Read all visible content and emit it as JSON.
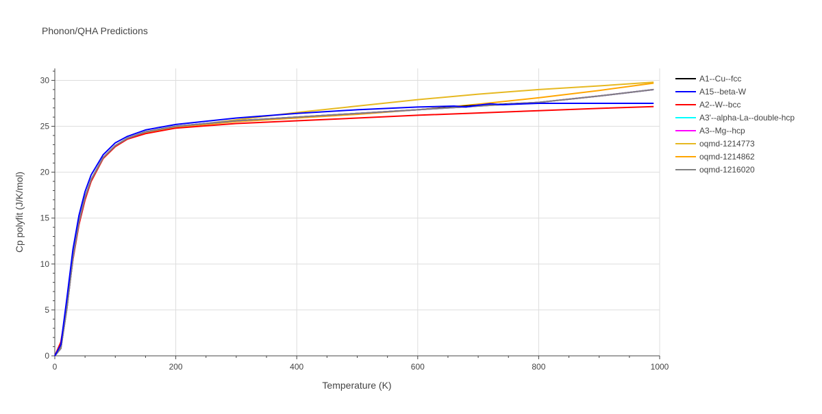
{
  "chart_data": {
    "type": "line",
    "title": "Phonon/QHA Predictions",
    "xlabel": "Temperature (K)",
    "ylabel": "Cp polyfit (J/K/mol)",
    "xlim": [
      0,
      1000
    ],
    "ylim": [
      0,
      31.3
    ],
    "x_ticks": [
      0,
      200,
      400,
      600,
      800,
      1000
    ],
    "y_ticks": [
      0,
      5,
      10,
      15,
      20,
      25,
      30
    ],
    "x_tick_labels": [
      "0",
      "200",
      "400",
      "600",
      "800",
      "1000"
    ],
    "y_tick_labels": [
      "0",
      "5",
      "10",
      "15",
      "20",
      "25",
      "30"
    ],
    "grid": true,
    "legend_position": "right",
    "series": [
      {
        "name": "A1--Cu--fcc",
        "color": "#000000",
        "x": [
          0,
          10,
          20,
          30,
          40,
          50,
          60,
          80,
          100,
          120,
          150,
          200,
          300,
          400,
          500,
          600,
          660,
          680,
          700,
          720,
          740,
          800,
          900,
          990
        ],
        "y": [
          0,
          0.8,
          5.2,
          10.7,
          14.6,
          17.3,
          19.2,
          21.6,
          22.9,
          23.7,
          24.4,
          25.0,
          25.6,
          26.0,
          26.4,
          26.8,
          27.1,
          27.2,
          27.3,
          27.35,
          27.4,
          27.6,
          28.3,
          29.0
        ]
      },
      {
        "name": "A15--beta-W",
        "color": "#0000ff",
        "x": [
          0,
          10,
          20,
          30,
          40,
          50,
          60,
          80,
          100,
          120,
          150,
          200,
          300,
          400,
          500,
          600,
          660,
          680,
          700,
          720,
          740,
          800,
          900,
          990
        ],
        "y": [
          0,
          1.2,
          6.3,
          11.6,
          15.3,
          17.9,
          19.7,
          21.9,
          23.2,
          23.9,
          24.6,
          25.2,
          25.9,
          26.4,
          26.8,
          27.1,
          27.2,
          27.1,
          27.3,
          27.45,
          27.35,
          27.5,
          27.5,
          27.5
        ]
      },
      {
        "name": "A2--W--bcc",
        "color": "#ff0000",
        "x": [
          0,
          10,
          20,
          30,
          40,
          50,
          60,
          80,
          100,
          120,
          150,
          200,
          300,
          400,
          500,
          600,
          700,
          800,
          900,
          990
        ],
        "y": [
          0,
          1.5,
          5.5,
          10.5,
          14.3,
          17.0,
          19.0,
          21.5,
          22.8,
          23.6,
          24.2,
          24.8,
          25.3,
          25.6,
          25.9,
          26.2,
          26.45,
          26.7,
          26.95,
          27.15
        ]
      },
      {
        "name": "A3'--alpha-La--double-hcp",
        "color": "#00ffff",
        "x": [
          0,
          10,
          20,
          30,
          40,
          50,
          60,
          80,
          100,
          120,
          150,
          200,
          300,
          400,
          500,
          600,
          700,
          800,
          900,
          990
        ],
        "y": [
          0,
          0.8,
          5.2,
          10.7,
          14.6,
          17.3,
          19.2,
          21.6,
          22.9,
          23.7,
          24.4,
          25.0,
          25.6,
          26.0,
          26.4,
          26.8,
          27.2,
          27.6,
          28.3,
          29.0
        ]
      },
      {
        "name": "A3--Mg--hcp",
        "color": "#ff00ff",
        "x": [
          0,
          10,
          20,
          30,
          40,
          50,
          60,
          80,
          100,
          120,
          150,
          200,
          300,
          400,
          500,
          600,
          700,
          800,
          900,
          990
        ],
        "y": [
          0,
          0.8,
          5.2,
          10.7,
          14.6,
          17.3,
          19.2,
          21.6,
          22.9,
          23.7,
          24.4,
          25.0,
          25.6,
          26.0,
          26.4,
          26.8,
          27.2,
          27.6,
          28.3,
          29.0
        ]
      },
      {
        "name": "oqmd-1214773",
        "color": "#e6b820",
        "x": [
          0,
          10,
          20,
          30,
          40,
          50,
          60,
          80,
          100,
          120,
          150,
          200,
          300,
          400,
          500,
          600,
          700,
          800,
          900,
          990
        ],
        "y": [
          0,
          0.9,
          5.3,
          10.6,
          14.4,
          17.1,
          19.0,
          21.5,
          22.8,
          23.7,
          24.3,
          24.9,
          25.7,
          26.5,
          27.2,
          27.9,
          28.5,
          29.0,
          29.4,
          29.8
        ]
      },
      {
        "name": "oqmd-1214862",
        "color": "#ffa500",
        "x": [
          0,
          10,
          20,
          30,
          40,
          50,
          60,
          80,
          100,
          120,
          150,
          200,
          300,
          400,
          500,
          600,
          700,
          800,
          900,
          990
        ],
        "y": [
          0,
          1.0,
          5.3,
          10.6,
          14.4,
          17.1,
          19.0,
          21.5,
          22.8,
          23.6,
          24.3,
          24.9,
          25.5,
          25.9,
          26.3,
          26.8,
          27.4,
          28.1,
          28.9,
          29.7
        ]
      },
      {
        "name": "oqmd-1216020",
        "color": "#808080",
        "x": [
          0,
          10,
          20,
          30,
          40,
          50,
          60,
          80,
          100,
          120,
          150,
          200,
          300,
          400,
          500,
          600,
          700,
          800,
          900,
          990
        ],
        "y": [
          0,
          0.8,
          5.2,
          10.7,
          14.6,
          17.3,
          19.2,
          21.6,
          22.9,
          23.7,
          24.4,
          25.0,
          25.6,
          26.0,
          26.4,
          26.8,
          27.2,
          27.6,
          28.3,
          29.0
        ]
      }
    ]
  }
}
